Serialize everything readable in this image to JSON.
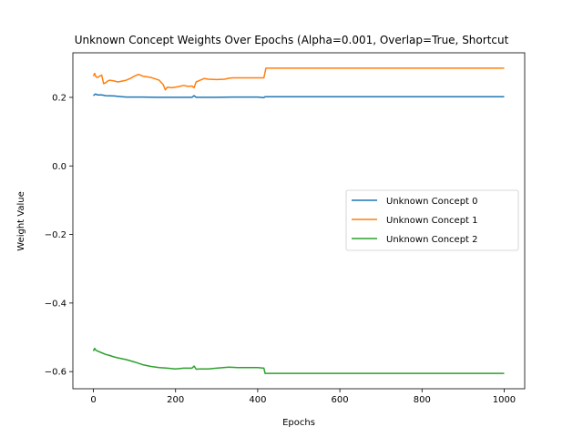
{
  "chart_data": {
    "type": "line",
    "title": "Unknown Concept Weights Over Epochs (Alpha=0.001, Overlap=True, Shortcut",
    "xlabel": "Epochs",
    "ylabel": "Weight Value",
    "xlim": [
      -50,
      1050
    ],
    "ylim": [
      -0.65,
      0.33
    ],
    "xticks": [
      0,
      200,
      400,
      600,
      800,
      1000
    ],
    "yticks": [
      -0.6,
      -0.4,
      -0.2,
      0.0,
      0.2
    ],
    "xtick_labels": [
      "0",
      "200",
      "400",
      "600",
      "800",
      "1000"
    ],
    "ytick_labels": [
      "−0.6",
      "−0.4",
      "−0.2",
      "0.0",
      "0.2"
    ],
    "grid": false,
    "legend_position": "center-right",
    "series": [
      {
        "name": "Unknown Concept 0",
        "color": "#1f77b4",
        "x": [
          0,
          5,
          10,
          20,
          30,
          50,
          80,
          100,
          120,
          150,
          180,
          200,
          220,
          240,
          245,
          250,
          260,
          300,
          350,
          400,
          415,
          418,
          420,
          500,
          600,
          700,
          800,
          900,
          1000
        ],
        "y": [
          0.205,
          0.21,
          0.207,
          0.207,
          0.205,
          0.204,
          0.201,
          0.201,
          0.201,
          0.2,
          0.2,
          0.2,
          0.2,
          0.2,
          0.205,
          0.2,
          0.2,
          0.2,
          0.201,
          0.201,
          0.199,
          0.202,
          0.202,
          0.202,
          0.202,
          0.202,
          0.202,
          0.202,
          0.202
        ]
      },
      {
        "name": "Unknown Concept 1",
        "color": "#ff7f0e",
        "x": [
          0,
          3,
          6,
          10,
          15,
          20,
          25,
          30,
          35,
          40,
          50,
          60,
          80,
          90,
          100,
          110,
          120,
          140,
          160,
          170,
          175,
          180,
          190,
          200,
          210,
          220,
          230,
          240,
          245,
          250,
          260,
          270,
          280,
          300,
          320,
          330,
          340,
          400,
          415,
          420,
          500,
          600,
          700,
          800,
          900,
          1000
        ],
        "y": [
          0.262,
          0.27,
          0.26,
          0.258,
          0.262,
          0.265,
          0.24,
          0.243,
          0.248,
          0.25,
          0.248,
          0.245,
          0.25,
          0.255,
          0.262,
          0.267,
          0.262,
          0.258,
          0.25,
          0.237,
          0.222,
          0.23,
          0.228,
          0.23,
          0.232,
          0.235,
          0.232,
          0.233,
          0.228,
          0.245,
          0.25,
          0.255,
          0.253,
          0.252,
          0.253,
          0.256,
          0.257,
          0.257,
          0.257,
          0.285,
          0.285,
          0.285,
          0.285,
          0.285,
          0.285,
          0.285
        ]
      },
      {
        "name": "Unknown Concept 2",
        "color": "#2ca02c",
        "x": [
          0,
          3,
          6,
          10,
          20,
          30,
          40,
          50,
          60,
          80,
          100,
          120,
          140,
          160,
          180,
          200,
          220,
          240,
          245,
          250,
          260,
          280,
          300,
          330,
          350,
          400,
          415,
          418,
          420,
          500,
          600,
          700,
          800,
          900,
          1000
        ],
        "y": [
          -0.54,
          -0.532,
          -0.538,
          -0.54,
          -0.545,
          -0.55,
          -0.553,
          -0.557,
          -0.56,
          -0.565,
          -0.572,
          -0.58,
          -0.585,
          -0.588,
          -0.59,
          -0.592,
          -0.59,
          -0.59,
          -0.584,
          -0.593,
          -0.592,
          -0.592,
          -0.59,
          -0.587,
          -0.588,
          -0.588,
          -0.59,
          -0.605,
          -0.605,
          -0.605,
          -0.605,
          -0.605,
          -0.605,
          -0.605,
          -0.605
        ]
      }
    ]
  }
}
